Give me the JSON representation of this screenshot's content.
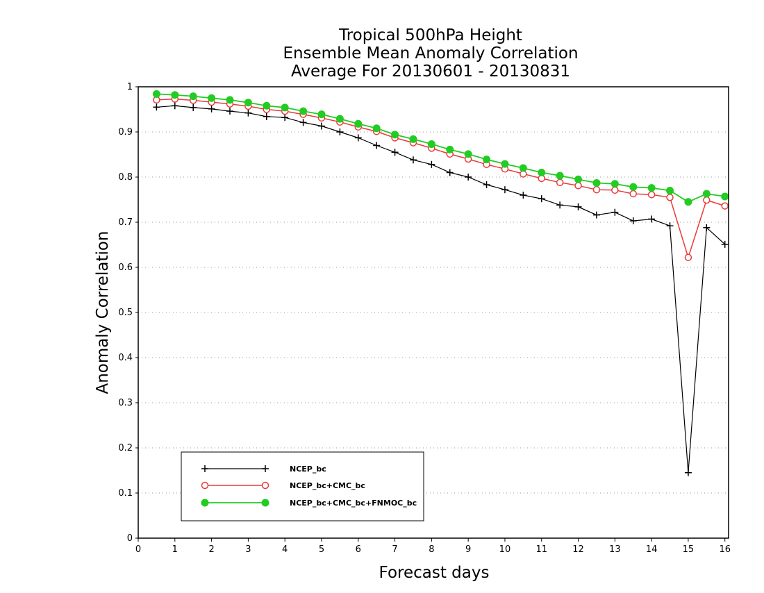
{
  "chart_data": {
    "type": "line",
    "title_lines": [
      "Tropical 500hPa Height",
      "Ensemble Mean Anomaly Correlation",
      "Average For 20130601 - 20130831"
    ],
    "xlabel": "Forecast days",
    "ylabel": "Anomaly Correlation",
    "xlim": [
      0,
      16.1
    ],
    "ylim": [
      0,
      1
    ],
    "x_ticks": [
      0,
      1,
      2,
      3,
      4,
      5,
      6,
      7,
      8,
      9,
      10,
      11,
      12,
      13,
      14,
      15,
      16
    ],
    "y_ticks": [
      0,
      0.1,
      0.2,
      0.3,
      0.4,
      0.5,
      0.6,
      0.7,
      0.8,
      0.9,
      1
    ],
    "y_tick_labels": [
      "0",
      "0.1",
      "0.2",
      "0.3",
      "0.4",
      "0.5",
      "0.6",
      "0.7",
      "0.8",
      "0.9",
      "1"
    ],
    "grid": "horizontal dotted",
    "legend_position": "bottom-left",
    "x": [
      0.5,
      1,
      1.5,
      2,
      2.5,
      3,
      3.5,
      4,
      4.5,
      5,
      5.5,
      6,
      6.5,
      7,
      7.5,
      8,
      8.5,
      9,
      9.5,
      10,
      10.5,
      11,
      11.5,
      12,
      12.5,
      13,
      13.5,
      14,
      14.5,
      15,
      15.5,
      16
    ],
    "series": [
      {
        "name": "NCEP_bc",
        "color": "#000000",
        "marker": "plus",
        "values": [
          0.955,
          0.958,
          0.954,
          0.951,
          0.946,
          0.942,
          0.934,
          0.932,
          0.921,
          0.913,
          0.9,
          0.887,
          0.87,
          0.855,
          0.838,
          0.828,
          0.81,
          0.8,
          0.783,
          0.772,
          0.76,
          0.752,
          0.738,
          0.734,
          0.716,
          0.722,
          0.703,
          0.707,
          0.692,
          0.145,
          0.688,
          0.651
        ]
      },
      {
        "name": "NCEP_bc+CMC_bc",
        "color": "#e83a3a",
        "marker": "open-circle",
        "values": [
          0.971,
          0.973,
          0.97,
          0.966,
          0.962,
          0.957,
          0.95,
          0.946,
          0.939,
          0.931,
          0.922,
          0.911,
          0.901,
          0.887,
          0.876,
          0.864,
          0.851,
          0.84,
          0.828,
          0.818,
          0.807,
          0.797,
          0.788,
          0.781,
          0.772,
          0.771,
          0.763,
          0.761,
          0.755,
          0.622,
          0.749,
          0.736
        ]
      },
      {
        "name": "NCEP_bc+CMC_bc+FNMOC_bc",
        "color": "#22cc22",
        "marker": "filled-circle",
        "values": [
          0.984,
          0.982,
          0.979,
          0.975,
          0.971,
          0.965,
          0.958,
          0.954,
          0.946,
          0.939,
          0.929,
          0.918,
          0.908,
          0.894,
          0.884,
          0.873,
          0.861,
          0.851,
          0.839,
          0.829,
          0.82,
          0.81,
          0.803,
          0.795,
          0.787,
          0.785,
          0.778,
          0.776,
          0.77,
          0.745,
          0.763,
          0.757
        ]
      }
    ]
  }
}
